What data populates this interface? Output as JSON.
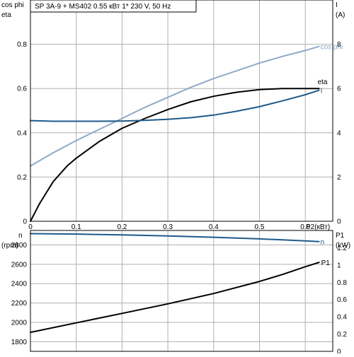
{
  "title": "SP 3A-9 + MS402   0.55 кВт   1* 230 V, 50 Hz",
  "colors": {
    "grid": "#b0b0b0",
    "frame": "#000000",
    "eta": "#000000",
    "current": "#1f5a8a",
    "cosphi": "#8eaac8",
    "speed": "#1f5a8a",
    "p1": "#000000"
  },
  "chart_data": [
    {
      "type": "line",
      "xlabel": "P2(кВт)",
      "ylabel": "cos phi",
      "ylabel2": "eta",
      "right_axis_label": "I",
      "right_axis_unit": "(A)",
      "xlim": [
        0,
        0.66
      ],
      "ylim": [
        0,
        1.0
      ],
      "y2lim": [
        0,
        10
      ],
      "x_ticks": [
        "0",
        "0.1",
        "0.2",
        "0.3",
        "0.4",
        "0.5",
        "0.6"
      ],
      "x_tick_values": [
        0,
        0.1,
        0.2,
        0.3,
        0.4,
        0.5,
        0.6
      ],
      "y_ticks": [
        "0",
        "0.2",
        "0.4",
        "0.6",
        "0.8"
      ],
      "y_tick_values": [
        0,
        0.2,
        0.4,
        0.6,
        0.8
      ],
      "y2_ticks": [
        "0",
        "2",
        "4",
        "6",
        "8"
      ],
      "y2_tick_values": [
        0,
        2,
        4,
        6,
        8
      ],
      "grid": true,
      "series": [
        {
          "name": "cos phi",
          "axis": "left",
          "color_key": "cosphi",
          "x": [
            0,
            0.05,
            0.1,
            0.15,
            0.2,
            0.25,
            0.3,
            0.35,
            0.4,
            0.45,
            0.5,
            0.55,
            0.6,
            0.63
          ],
          "y": [
            0.25,
            0.31,
            0.365,
            0.415,
            0.465,
            0.515,
            0.56,
            0.605,
            0.645,
            0.68,
            0.715,
            0.745,
            0.772,
            0.79
          ]
        },
        {
          "name": "eta",
          "axis": "left",
          "color_key": "eta",
          "x": [
            0,
            0.02,
            0.05,
            0.08,
            0.1,
            0.15,
            0.2,
            0.25,
            0.3,
            0.35,
            0.4,
            0.45,
            0.5,
            0.55,
            0.6,
            0.63
          ],
          "y": [
            0,
            0.08,
            0.18,
            0.25,
            0.285,
            0.36,
            0.42,
            0.465,
            0.505,
            0.54,
            0.565,
            0.583,
            0.595,
            0.6,
            0.6,
            0.6
          ]
        },
        {
          "name": "I",
          "axis": "right",
          "color_key": "current",
          "x": [
            0,
            0.05,
            0.1,
            0.15,
            0.2,
            0.25,
            0.3,
            0.35,
            0.4,
            0.45,
            0.5,
            0.55,
            0.6,
            0.63
          ],
          "y": [
            4.55,
            4.52,
            4.52,
            4.52,
            4.53,
            4.56,
            4.61,
            4.68,
            4.8,
            4.97,
            5.18,
            5.44,
            5.72,
            5.92
          ]
        }
      ]
    },
    {
      "type": "line",
      "xlabel": "",
      "ylabel": "n",
      "ylabel_unit": "(rpm)",
      "right_axis_label": "P1",
      "right_axis_unit": "(kW)",
      "xlim": [
        0,
        0.66
      ],
      "ylim": [
        1700,
        2950
      ],
      "y2lim": [
        0,
        1.4
      ],
      "y_ticks": [
        "1800",
        "2000",
        "2200",
        "2400",
        "2600",
        "2800"
      ],
      "y_tick_values": [
        1800,
        2000,
        2200,
        2400,
        2600,
        2800
      ],
      "y2_ticks": [
        "0",
        "0.2",
        "0.4",
        "0.6",
        "0.8",
        "1",
        "1.2"
      ],
      "y2_tick_values": [
        0,
        0.2,
        0.4,
        0.6,
        0.8,
        1.0,
        1.2
      ],
      "grid": true,
      "series": [
        {
          "name": "n",
          "axis": "left",
          "color_key": "speed",
          "x": [
            0,
            0.1,
            0.2,
            0.3,
            0.4,
            0.5,
            0.55,
            0.6,
            0.63
          ],
          "y": [
            2917,
            2913,
            2904,
            2893,
            2880,
            2863,
            2853,
            2842,
            2835
          ]
        },
        {
          "name": "P1",
          "axis": "right",
          "color_key": "p1",
          "x": [
            0,
            0.1,
            0.2,
            0.3,
            0.4,
            0.5,
            0.55,
            0.6,
            0.63
          ],
          "y": [
            0.22,
            0.33,
            0.44,
            0.55,
            0.67,
            0.81,
            0.89,
            0.98,
            1.03
          ]
        }
      ]
    }
  ]
}
